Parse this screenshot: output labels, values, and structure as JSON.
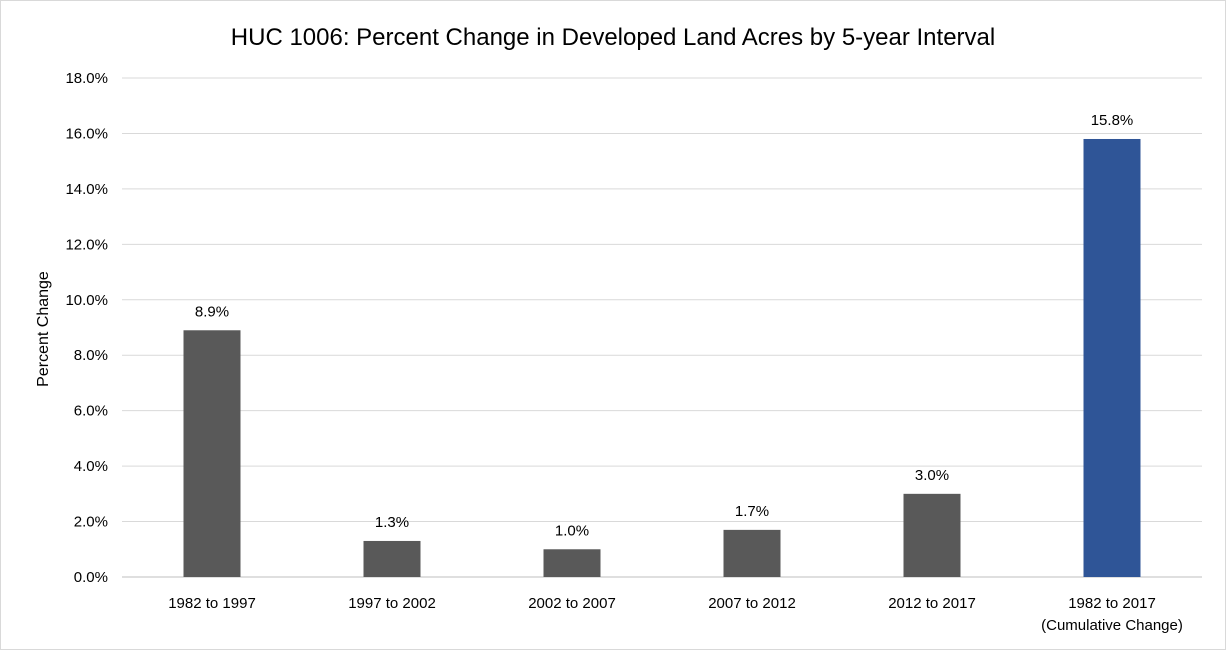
{
  "chart_data": {
    "type": "bar",
    "title": "HUC 1006: Percent Change in Developed Land Acres by 5-year Interval",
    "xlabel": "",
    "ylabel": "Percent Change",
    "ylim": [
      0,
      18
    ],
    "yticks": [
      "0.0%",
      "2.0%",
      "4.0%",
      "6.0%",
      "8.0%",
      "10.0%",
      "12.0%",
      "14.0%",
      "16.0%",
      "18.0%"
    ],
    "grid": true,
    "categories": [
      [
        "1982  to 1997"
      ],
      [
        "1997  to 2002"
      ],
      [
        "2002  to 2007"
      ],
      [
        "2007  to 2012"
      ],
      [
        "2012  to 2017"
      ],
      [
        "1982 to 2017",
        "(Cumulative Change)"
      ]
    ],
    "values": [
      8.9,
      1.3,
      1.0,
      1.7,
      3.0,
      15.8
    ],
    "data_labels": [
      "8.9%",
      "1.3%",
      "1.0%",
      "1.7%",
      "3.0%",
      "15.8%"
    ],
    "colors": [
      "#595959",
      "#595959",
      "#595959",
      "#595959",
      "#595959",
      "#2f5597"
    ]
  }
}
